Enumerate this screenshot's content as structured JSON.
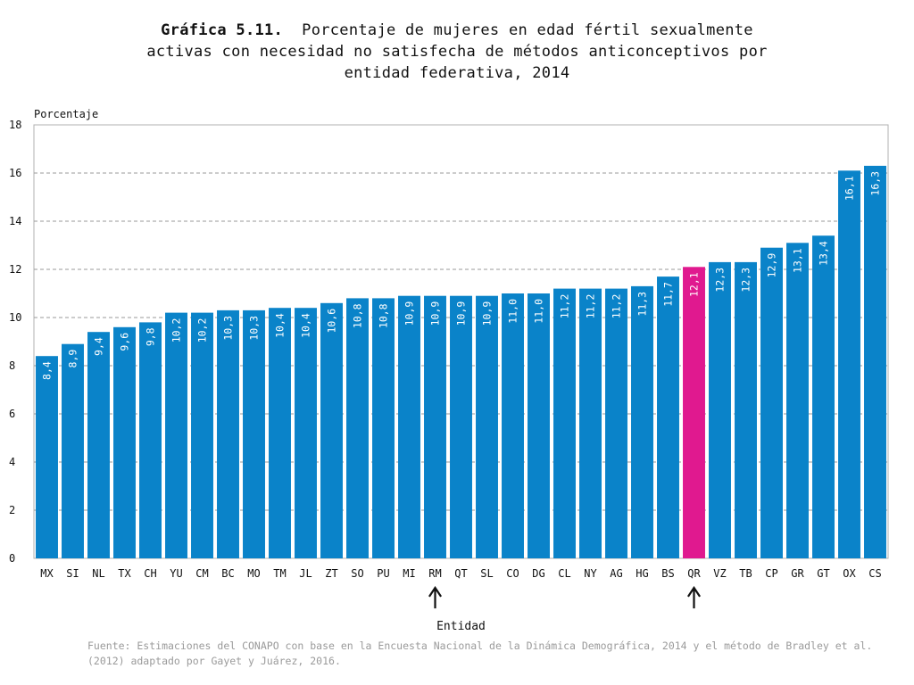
{
  "title": {
    "prefix": "Gráfica 5.11.",
    "line1": "Porcentaje de mujeres en edad fértil sexualmente",
    "line2": "activas con necesidad no satisfecha de métodos anticonceptivos por",
    "line3": "entidad federativa, 2014"
  },
  "source": "Fuente: Estimaciones del CONAPO con base en la Encuesta Nacional de la Dinámica Demográfica, 2014 y el método de Bradley et al. (2012) adaptado por Gayet y Juárez, 2016.",
  "colors": {
    "bar": "#0a83c9",
    "highlight": "#e0198f",
    "grid": "#9a9a9a",
    "axis": "#666666"
  },
  "chart_data": {
    "type": "bar",
    "ylabel": "Porcentaje",
    "xlabel": "Entidad",
    "ylim": [
      0,
      18
    ],
    "yticks": [
      0,
      2,
      4,
      6,
      8,
      10,
      12,
      14,
      16,
      18
    ],
    "grid": true,
    "categories": [
      "MX",
      "SI",
      "NL",
      "TX",
      "CH",
      "YU",
      "CM",
      "BC",
      "MO",
      "TM",
      "JL",
      "ZT",
      "SO",
      "PU",
      "MI",
      "RM",
      "QT",
      "SL",
      "CO",
      "DG",
      "CL",
      "NY",
      "AG",
      "HG",
      "BS",
      "QR",
      "VZ",
      "TB",
      "CP",
      "GR",
      "GT",
      "OX",
      "CS"
    ],
    "values": [
      8.4,
      8.9,
      9.4,
      9.6,
      9.8,
      10.2,
      10.2,
      10.3,
      10.3,
      10.4,
      10.4,
      10.6,
      10.8,
      10.8,
      10.9,
      10.9,
      10.9,
      10.9,
      11.0,
      11.0,
      11.2,
      11.2,
      11.2,
      11.3,
      11.7,
      12.1,
      12.3,
      12.3,
      12.9,
      13.1,
      13.4,
      16.1,
      16.3
    ],
    "labels": [
      "8,4",
      "8,9",
      "9,4",
      "9,6",
      "9,8",
      "10,2",
      "10,2",
      "10,3",
      "10,3",
      "10,4",
      "10,4",
      "10,6",
      "10,8",
      "10,8",
      "10,9",
      "10,9",
      "10,9",
      "10,9",
      "11,0",
      "11,0",
      "11,2",
      "11,2",
      "11,2",
      "11,3",
      "11,7",
      "12,1",
      "12,3",
      "12,3",
      "12,9",
      "13,1",
      "13,4",
      "16,1",
      "16,3"
    ],
    "highlight": [
      "QR"
    ],
    "arrows": [
      "RM",
      "QR"
    ]
  }
}
